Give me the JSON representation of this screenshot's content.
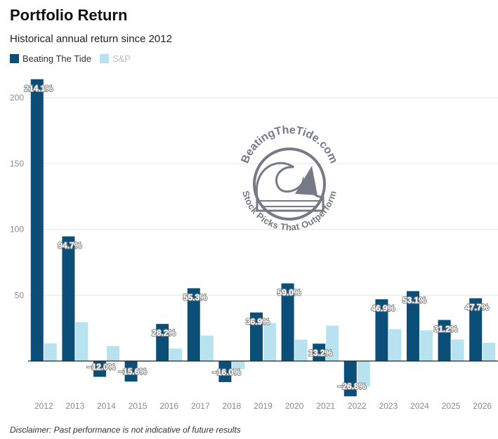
{
  "header": {
    "title": "Portfolio Return",
    "subtitle": "Historical annual return since 2012"
  },
  "legend": {
    "items": [
      {
        "label": "Beating The Tide",
        "color": "#0b4f78"
      },
      {
        "label": "S&P",
        "color": "#b9e2f0"
      }
    ]
  },
  "watermark": {
    "top_text": "BeatingTheTide.com",
    "bottom_text": "Stock Picks That Outperform"
  },
  "footer": {
    "disclaimer": "Disclaimer: Past performance is not indicative of future results"
  },
  "chart_data": {
    "type": "bar",
    "categories": [
      "2012",
      "2013",
      "2014",
      "2015",
      "2016",
      "2017",
      "2018",
      "2019",
      "2020",
      "2021",
      "2022",
      "2023",
      "2024",
      "2025",
      "2026"
    ],
    "series": [
      {
        "name": "Beating The Tide",
        "color": "#0b4f78",
        "values": [
          214.1,
          94.7,
          -12.0,
          -15.6,
          28.2,
          55.3,
          -16.0,
          36.9,
          59.0,
          13.2,
          -26.8,
          46.9,
          53.1,
          31.2,
          47.7
        ],
        "labels": [
          "214.1%",
          "94.7%",
          "−12.0%",
          "−15.6%",
          "28.2%",
          "55.3%",
          "−16.0%",
          "36.9%",
          "59.0%",
          "13.2%",
          "−26.8%",
          "46.9%",
          "53.1%",
          "31.2%",
          "47.7%"
        ]
      },
      {
        "name": "S&P",
        "color": "#b9e2f0",
        "values": [
          13.4,
          29.6,
          11.4,
          -0.7,
          9.5,
          19.4,
          -6.2,
          28.9,
          16.3,
          26.9,
          -19.4,
          24.2,
          23.3,
          16.4,
          13.9
        ]
      }
    ],
    "yticks": [
      50,
      100,
      150,
      200
    ],
    "ylim": [
      -28,
      214.1
    ],
    "grid": true,
    "legend_position": "top-left"
  }
}
